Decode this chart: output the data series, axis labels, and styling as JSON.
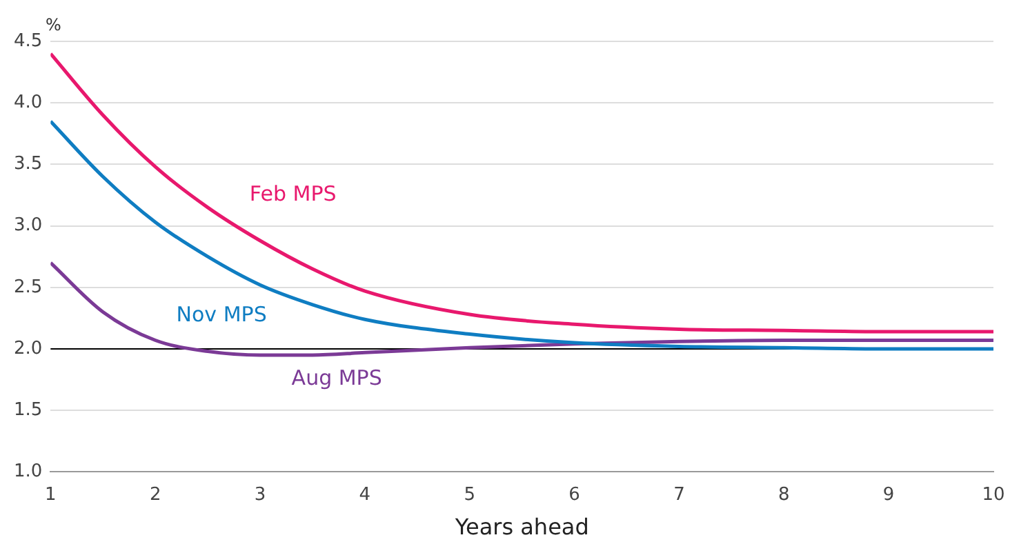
{
  "chart_data": {
    "type": "line",
    "xlabel": "Years ahead",
    "ylabel": "%",
    "x": [
      1,
      1.5,
      2,
      2.5,
      3,
      3.5,
      4,
      5,
      6,
      7,
      8,
      9,
      10
    ],
    "series": [
      {
        "name": "Feb MPS",
        "color": "#e8186d",
        "values": [
          4.4,
          3.9,
          3.48,
          3.15,
          2.88,
          2.65,
          2.47,
          2.28,
          2.2,
          2.16,
          2.15,
          2.14,
          2.14
        ]
      },
      {
        "name": "Nov MPS",
        "color": "#0f7dc2",
        "values": [
          3.85,
          3.4,
          3.03,
          2.75,
          2.52,
          2.36,
          2.24,
          2.12,
          2.05,
          2.02,
          2.01,
          2.0,
          2.0
        ]
      },
      {
        "name": "Aug MPS",
        "color": "#7b3a96",
        "values": [
          2.7,
          2.3,
          2.07,
          1.98,
          1.95,
          1.95,
          1.97,
          2.01,
          2.04,
          2.06,
          2.07,
          2.07,
          2.07
        ]
      }
    ],
    "xlim": [
      1,
      10
    ],
    "xticks": [
      1,
      2,
      3,
      4,
      5,
      6,
      7,
      8,
      9,
      10
    ],
    "ylim": [
      1,
      4.5
    ],
    "yticks": [
      {
        "value": 1,
        "label": "1.0"
      },
      {
        "value": 1.5,
        "label": "1.5"
      },
      {
        "value": 2,
        "label": "2.0"
      },
      {
        "value": 2.5,
        "label": "2.5"
      },
      {
        "value": 3,
        "label": "3.0"
      },
      {
        "value": 3.5,
        "label": "3.5"
      },
      {
        "value": 4,
        "label": "4.0"
      },
      {
        "value": 4.5,
        "label": "4.5"
      }
    ],
    "ref_lines": [
      {
        "axis": "y",
        "value": 2,
        "color": "#000000"
      }
    ],
    "grid": "y",
    "legend": false,
    "marker": "none",
    "line_style": "solid"
  }
}
